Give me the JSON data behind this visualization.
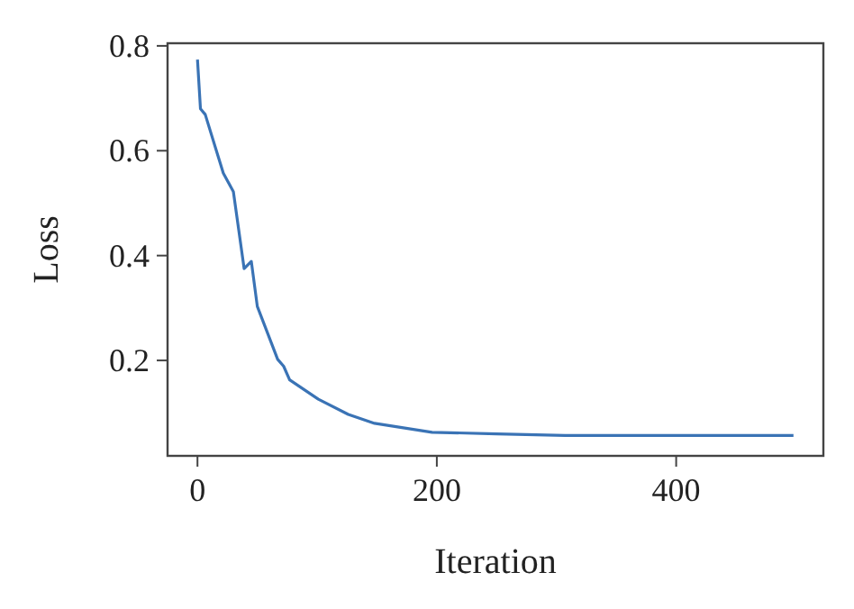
{
  "chart_data": {
    "type": "line",
    "xlabel": "Iteration",
    "ylabel": "Loss",
    "x": [
      0,
      2.5,
      6.5,
      16.6,
      21.6,
      30,
      39,
      45,
      50,
      67,
      72,
      77,
      101,
      126,
      148,
      196,
      250,
      307,
      400,
      498
    ],
    "series": [
      {
        "color": "#3a73b5",
        "values": [
          0.774,
          0.68,
          0.669,
          0.594,
          0.557,
          0.522,
          0.375,
          0.389,
          0.303,
          0.202,
          0.189,
          0.163,
          0.126,
          0.097,
          0.08,
          0.063,
          0.06,
          0.057,
          0.057,
          0.057
        ]
      }
    ],
    "xlim": [
      -25,
      523
    ],
    "ylim": [
      0.018,
      0.805
    ],
    "xticks": [
      0,
      200,
      400
    ],
    "yticks": [
      {
        "value": 0.2,
        "label": "0.2"
      },
      {
        "value": 0.4,
        "label": "0.4"
      },
      {
        "value": 0.6,
        "label": "0.6"
      },
      {
        "value": 0.8,
        "label": "0.8"
      }
    ],
    "grid": false,
    "marker": "none",
    "line_style": "solid"
  }
}
